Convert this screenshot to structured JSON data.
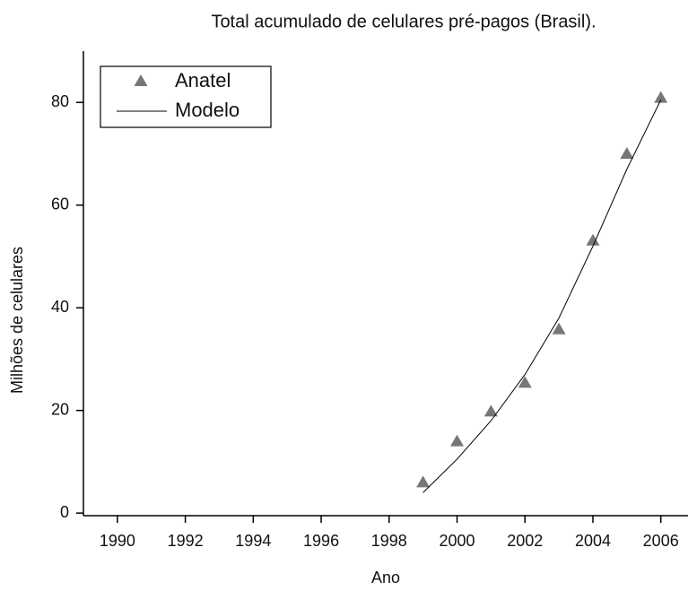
{
  "chart_data": {
    "type": "line",
    "title": "Total acumulado de celulares pré-pagos (Brasil).",
    "x_label": "Ano",
    "y_label": "Milhões de celulares",
    "x": [
      1999,
      2000,
      2001,
      2002,
      2003,
      2004,
      2005,
      2006
    ],
    "series": [
      {
        "name": "Anatel",
        "color": "#777777",
        "style": "markers",
        "values": [
          5.9,
          13.9,
          19.7,
          25.3,
          35.7,
          53,
          69.9,
          80.8
        ]
      },
      {
        "name": "Modelo",
        "color": "#000000",
        "style": "line",
        "values": [
          4,
          10.5,
          18,
          27,
          38,
          52,
          67,
          80.5
        ]
      }
    ],
    "xlim": [
      1989,
      2006.8
    ],
    "xticks": [
      1990,
      1992,
      1994,
      1996,
      1998,
      2000,
      2002,
      2004,
      2006
    ],
    "ylim": [
      -0.5,
      90
    ],
    "yticks": [
      0,
      20,
      40,
      60,
      80
    ],
    "legend": "upper left"
  }
}
